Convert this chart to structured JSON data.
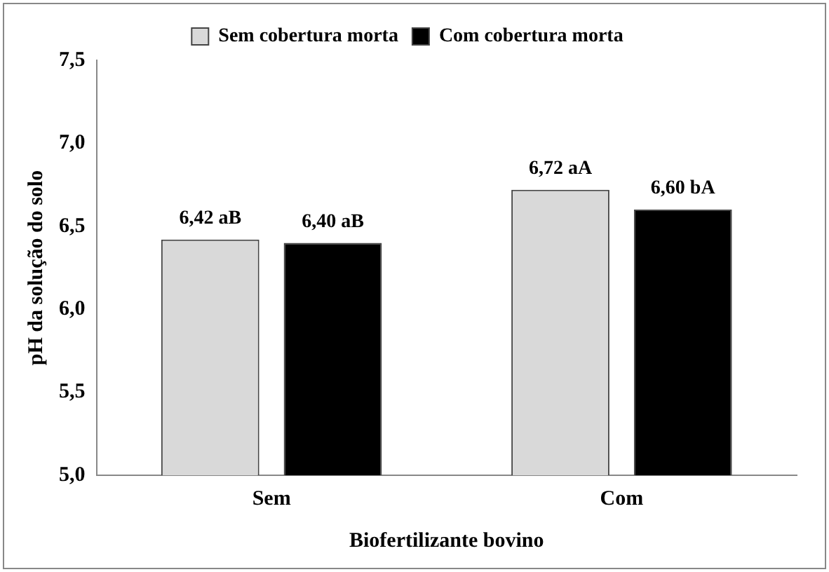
{
  "chart_data": {
    "type": "bar",
    "xlabel": "Biofertilizante bovino",
    "ylabel": "pH da solução do solo",
    "categories": [
      "Sem",
      "Com"
    ],
    "series": [
      {
        "name": "Sem cobertura morta",
        "color": "#d9d9d9",
        "values": [
          6.42,
          6.72
        ],
        "value_labels": [
          "6,42 aB",
          "6,72 aA"
        ]
      },
      {
        "name": "Com cobertura morta",
        "color": "#000000",
        "values": [
          6.4,
          6.6
        ],
        "value_labels": [
          "6,40 aB",
          "6,60 bA"
        ]
      }
    ],
    "ylim": [
      5,
      7.5
    ],
    "yticks": [
      {
        "value": 5,
        "label": "5,0"
      },
      {
        "value": 5.5,
        "label": "5,5"
      },
      {
        "value": 6,
        "label": "6,0"
      },
      {
        "value": 6.5,
        "label": "6,5"
      },
      {
        "value": 7,
        "label": "7,0"
      },
      {
        "value": 7.5,
        "label": "7,5"
      }
    ],
    "grid": false,
    "legend": "top"
  }
}
